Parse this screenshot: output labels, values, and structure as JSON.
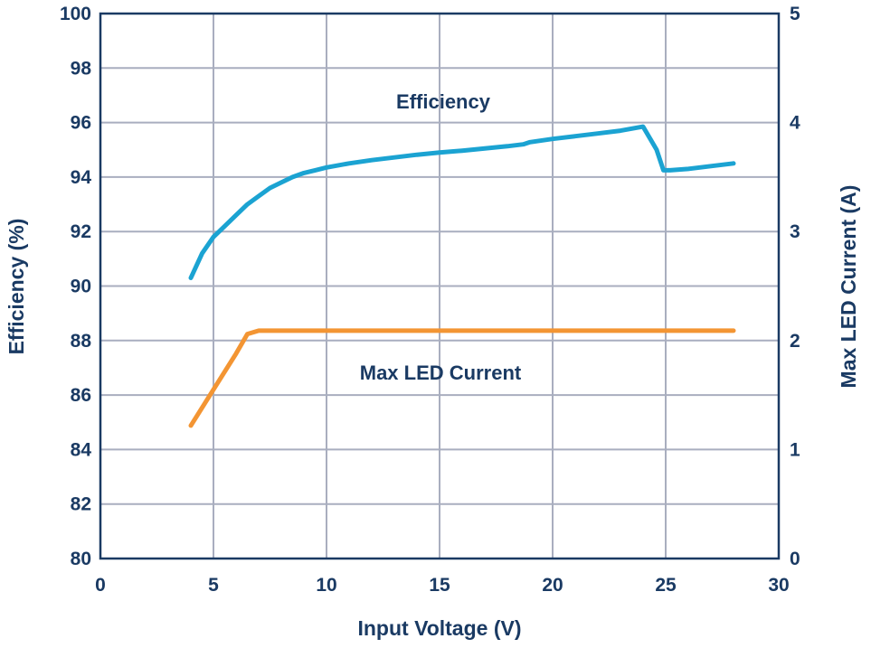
{
  "chart_data": {
    "type": "line",
    "xlabel": "Input Voltage (V)",
    "ylabel": "Efficiency (%)",
    "y2label": "Max LED Current (A)",
    "xlim": [
      0,
      30
    ],
    "ylim": [
      80,
      100
    ],
    "y2lim": [
      0,
      5
    ],
    "x_ticks": [
      0,
      5,
      10,
      15,
      20,
      25,
      30
    ],
    "y_ticks": [
      80,
      82,
      84,
      86,
      88,
      90,
      92,
      94,
      96,
      98,
      100
    ],
    "y2_ticks": [
      0,
      1,
      2,
      3,
      4,
      5
    ],
    "grid": true,
    "annotations": [
      "Efficiency",
      "Max LED Current"
    ],
    "colors": {
      "axis": "#1a3a63",
      "grid": "#a9aebf",
      "efficiency": "#1ba3d2",
      "current": "#f39533"
    },
    "series": [
      {
        "axis": "left",
        "x": [
          4.0,
          4.5,
          5.0,
          5.5,
          6.0,
          6.5,
          7.0,
          7.5,
          8.0,
          8.5,
          9.0,
          9.5,
          10.0,
          11.0,
          12.0,
          13.0,
          14.0,
          15.0,
          16.0,
          17.0,
          18.0,
          18.7,
          19.0,
          20.0,
          21.0,
          22.0,
          23.0,
          24.0,
          24.6,
          24.9,
          25.2,
          26.0,
          27.0,
          28.0
        ],
        "values": [
          90.3,
          91.2,
          91.8,
          92.2,
          92.6,
          93.0,
          93.3,
          93.6,
          93.8,
          94.0,
          94.15,
          94.25,
          94.35,
          94.5,
          94.62,
          94.72,
          94.82,
          94.9,
          94.97,
          95.05,
          95.13,
          95.2,
          95.28,
          95.4,
          95.5,
          95.6,
          95.7,
          95.85,
          95.0,
          94.25,
          94.25,
          94.3,
          94.4,
          94.5
        ]
      },
      {
        "axis": "right",
        "x": [
          4.0,
          5.0,
          6.0,
          6.5,
          7.0,
          7.5,
          8.0,
          10.0,
          15.0,
          20.0,
          25.0,
          28.0
        ],
        "values": [
          1.22,
          1.55,
          1.88,
          2.06,
          2.09,
          2.09,
          2.09,
          2.09,
          2.09,
          2.09,
          2.09,
          2.09
        ]
      }
    ]
  }
}
